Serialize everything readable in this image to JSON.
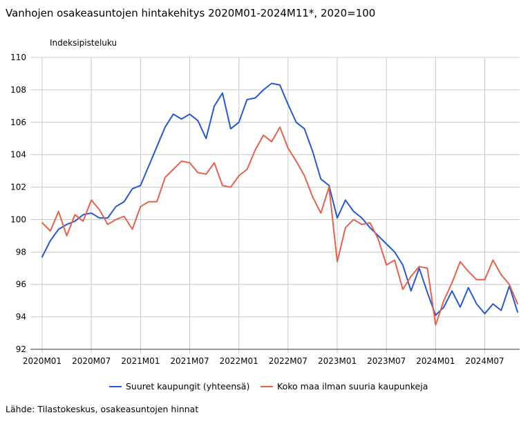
{
  "chart_data": {
    "type": "line",
    "title": "Vanhojen osakeasuntojen hintakehitys 2020M01-2024M11*, 2020=100",
    "ylabel": "Indeksipisteluku",
    "xlabel": "",
    "ylim": [
      92,
      110
    ],
    "yticks": [
      92,
      94,
      96,
      98,
      100,
      102,
      104,
      106,
      108,
      110
    ],
    "x": [
      "2020M01",
      "2020M02",
      "2020M03",
      "2020M04",
      "2020M05",
      "2020M06",
      "2020M07",
      "2020M08",
      "2020M09",
      "2020M10",
      "2020M11",
      "2020M12",
      "2021M01",
      "2021M02",
      "2021M03",
      "2021M04",
      "2021M05",
      "2021M06",
      "2021M07",
      "2021M08",
      "2021M09",
      "2021M10",
      "2021M11",
      "2021M12",
      "2022M01",
      "2022M02",
      "2022M03",
      "2022M04",
      "2022M05",
      "2022M06",
      "2022M07",
      "2022M08",
      "2022M09",
      "2022M10",
      "2022M11",
      "2022M12",
      "2023M01",
      "2023M02",
      "2023M03",
      "2023M04",
      "2023M05",
      "2023M06",
      "2023M07",
      "2023M08",
      "2023M09",
      "2023M10",
      "2023M11",
      "2023M12",
      "2024M01",
      "2024M02",
      "2024M03",
      "2024M04",
      "2024M05",
      "2024M06",
      "2024M07",
      "2024M08",
      "2024M09",
      "2024M10",
      "2024M11"
    ],
    "xticks": [
      "2020M01",
      "2020M07",
      "2021M01",
      "2021M07",
      "2022M01",
      "2022M07",
      "2023M01",
      "2023M07",
      "2024M01",
      "2024M07"
    ],
    "grid": true,
    "legend_position": "bottom",
    "series": [
      {
        "name": "Suuret kaupungit (yhteensä)",
        "color": "#2457d6",
        "values": [
          97.7,
          98.7,
          99.4,
          99.7,
          99.9,
          100.3,
          100.4,
          100.1,
          100.1,
          100.8,
          101.1,
          101.9,
          102.1,
          103.3,
          104.5,
          105.7,
          106.5,
          106.2,
          106.5,
          106.1,
          105.0,
          107.0,
          107.8,
          105.6,
          106.0,
          107.4,
          107.5,
          108.0,
          108.4,
          108.3,
          107.1,
          106.0,
          105.6,
          104.2,
          102.5,
          102.1,
          100.1,
          101.2,
          100.5,
          100.1,
          99.5,
          99.0,
          98.5,
          98.0,
          97.2,
          95.6,
          97.0,
          95.5,
          94.1,
          94.6,
          95.6,
          94.6,
          95.8,
          94.8,
          94.2,
          94.8,
          94.4,
          95.9,
          94.3
        ]
      },
      {
        "name": "Koko maa ilman suuria kaupunkeja",
        "color": "#e8604c",
        "values": [
          99.8,
          99.3,
          100.5,
          99.0,
          100.3,
          99.9,
          101.2,
          100.6,
          99.7,
          100.0,
          100.2,
          99.4,
          100.8,
          101.1,
          101.1,
          102.6,
          103.1,
          103.6,
          103.5,
          102.9,
          102.8,
          103.5,
          102.1,
          102.0,
          102.7,
          103.1,
          104.3,
          105.2,
          104.8,
          105.7,
          104.4,
          103.6,
          102.7,
          101.4,
          100.4,
          102.0,
          97.4,
          99.5,
          100.0,
          99.7,
          99.8,
          98.8,
          97.2,
          97.5,
          95.7,
          96.5,
          97.1,
          97.0,
          93.5,
          95.0,
          96.1,
          97.4,
          96.8,
          96.3,
          96.3,
          97.5,
          96.6,
          96.0,
          94.8
        ]
      }
    ],
    "source": "Lähde: Tilastokeskus, osakeasuntojen hinnat"
  }
}
